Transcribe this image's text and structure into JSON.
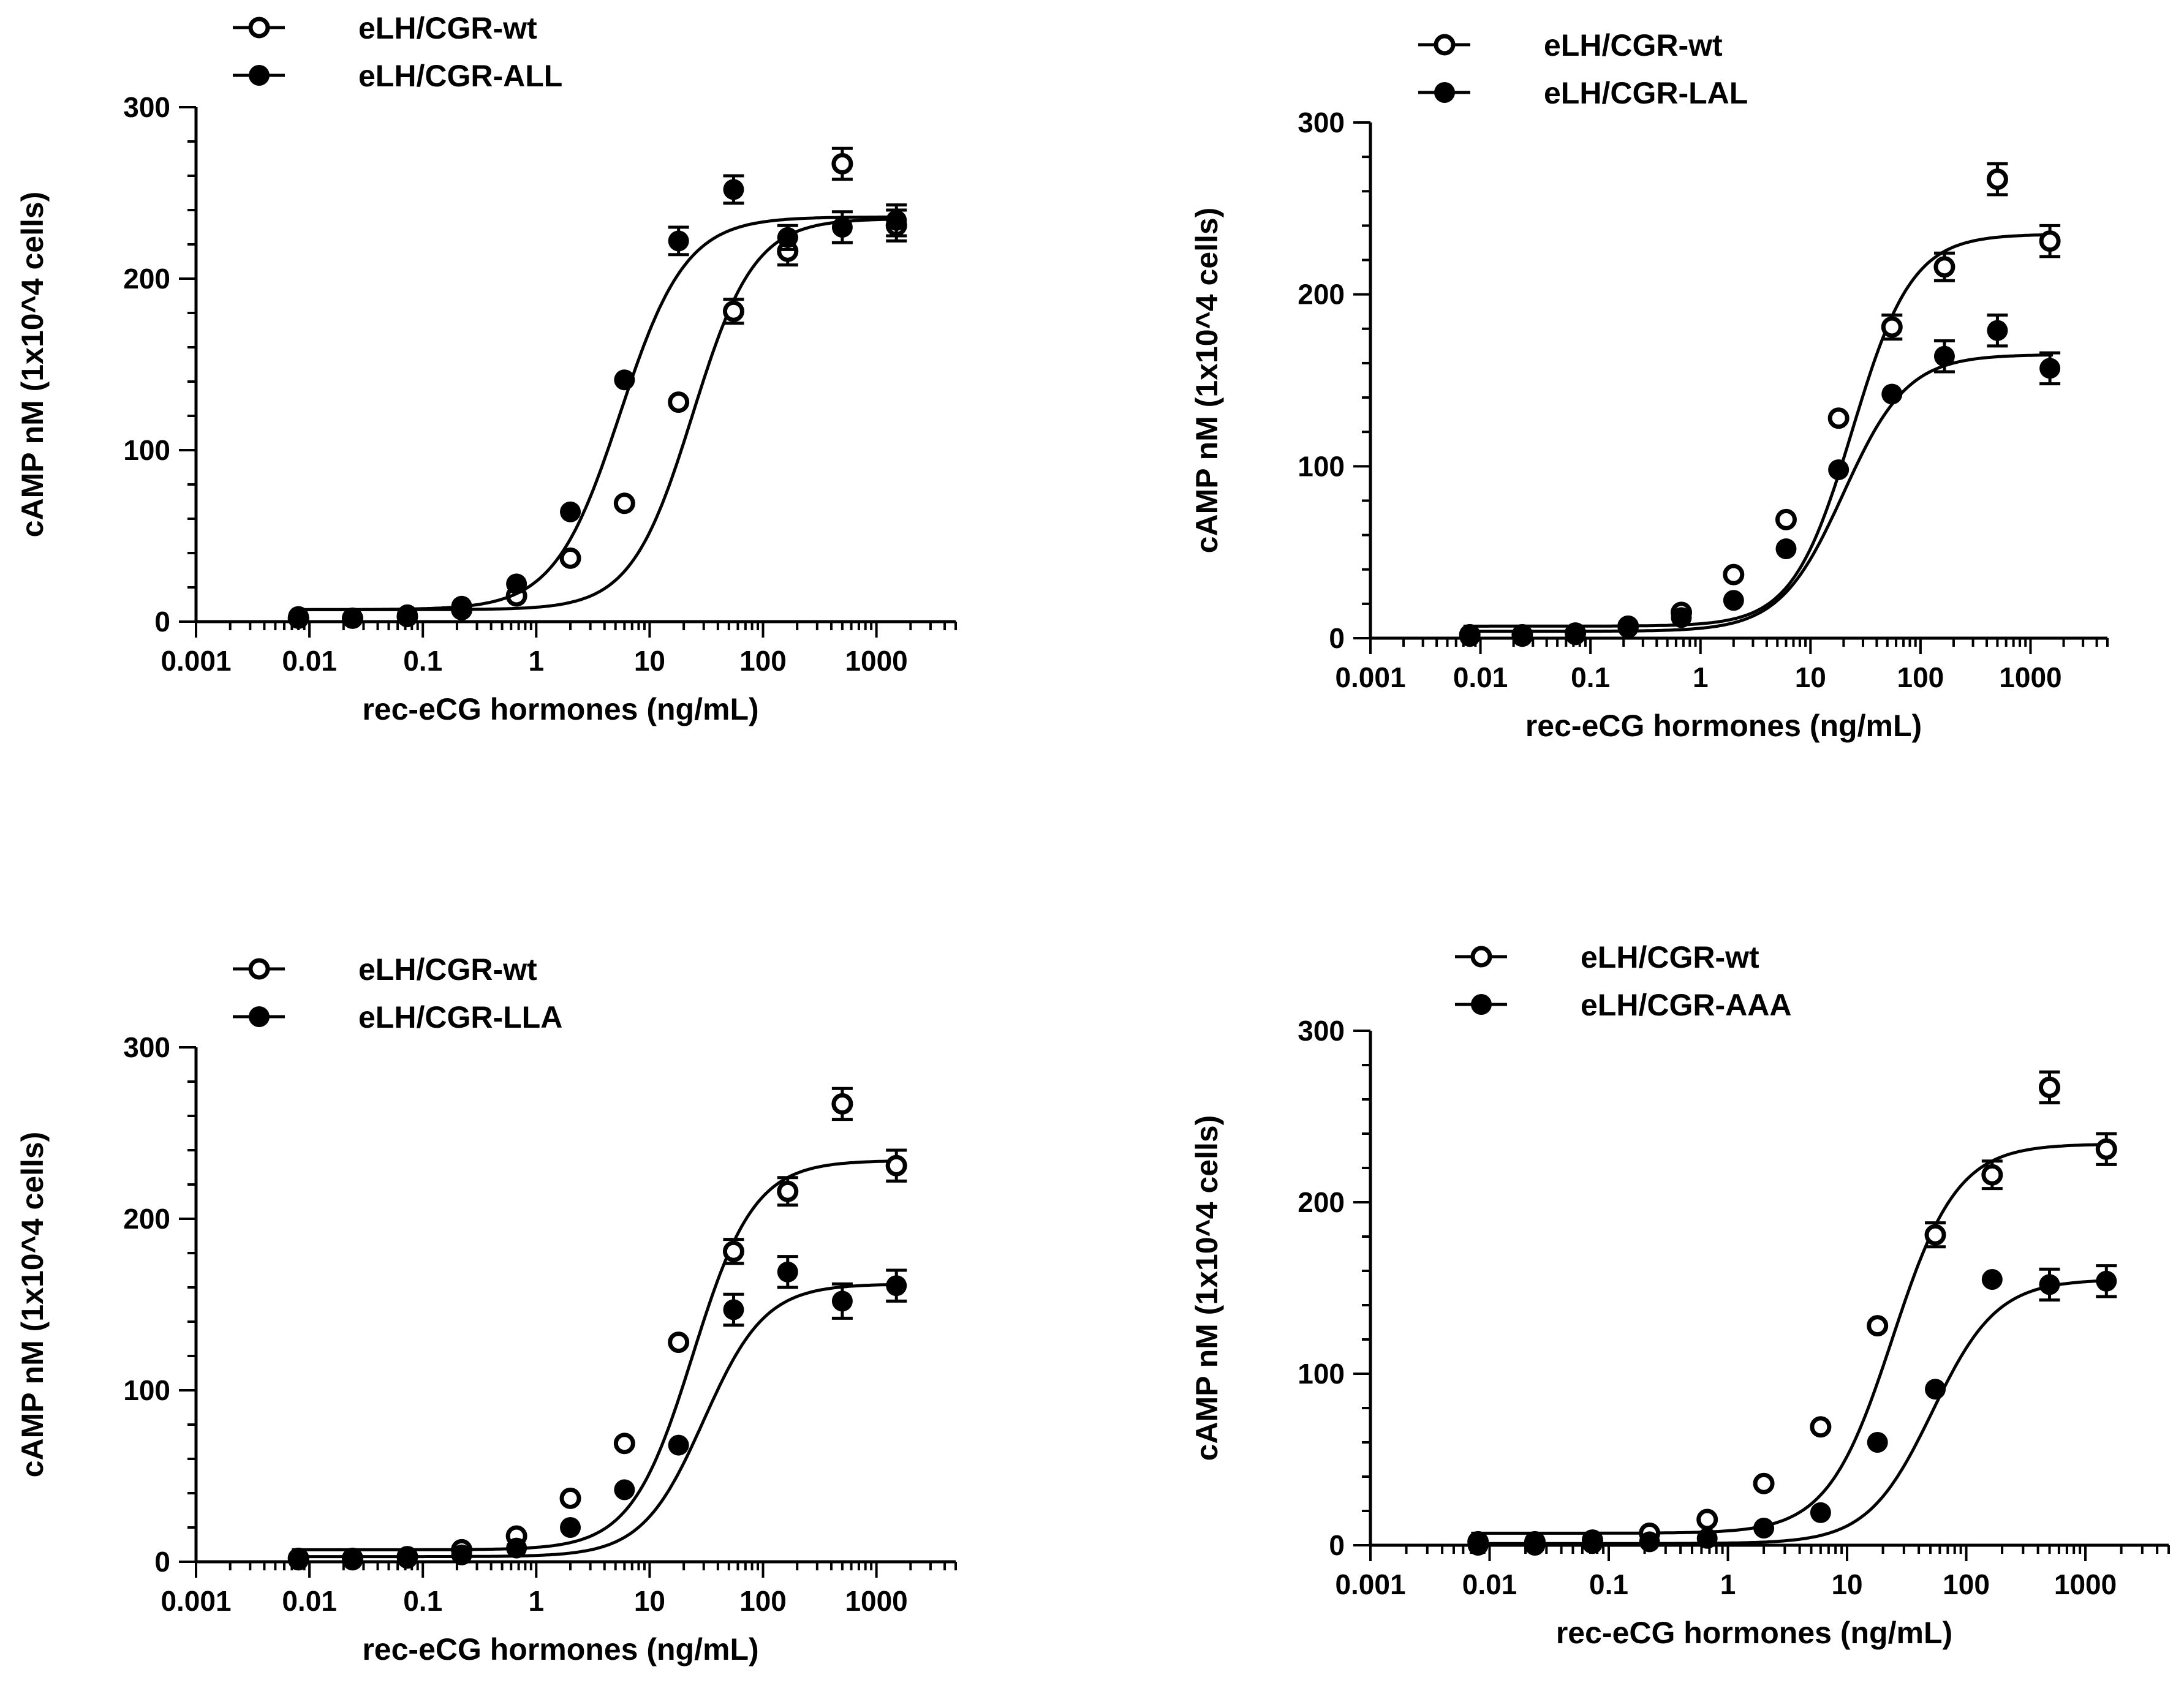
{
  "chart_data": [
    {
      "type": "scatter",
      "panel": "top-left",
      "xlabel": "rec-eCG hormones (ng/mL)",
      "ylabel": "cAMP nM (1x10^4 cells)",
      "xscale": "log",
      "xlim": [
        0.001,
        5000
      ],
      "ylim": [
        0,
        300
      ],
      "xticks": [
        "0.001",
        "0.01",
        "0.1",
        "1",
        "10",
        "100",
        "1000"
      ],
      "yticks": [
        "0",
        "100",
        "200",
        "300"
      ],
      "legend_position": "top-left",
      "series": [
        {
          "name": "eLH/CGR-wt",
          "marker": "open-circle",
          "x": [
            0.008,
            0.024,
            0.073,
            0.22,
            0.67,
            2,
            6,
            18,
            55,
            165,
            500,
            1500
          ],
          "y": [
            2,
            2,
            3,
            7,
            15,
            37,
            69,
            128,
            181,
            216,
            267,
            231
          ],
          "err": [
            0,
            0,
            0,
            0,
            0,
            0,
            0,
            0,
            7,
            8,
            9,
            9
          ],
          "fit": {
            "bottom": 7,
            "top": 235,
            "ec50": 24,
            "hill": 1.6
          }
        },
        {
          "name": "eLH/CGR-ALL",
          "marker": "filled-circle",
          "x": [
            0.008,
            0.024,
            0.073,
            0.22,
            0.67,
            2,
            6,
            18,
            55,
            165,
            500,
            1500
          ],
          "y": [
            3,
            2,
            4,
            9,
            22,
            64,
            141,
            222,
            252,
            224,
            230,
            234
          ],
          "err": [
            0,
            0,
            0,
            0,
            0,
            0,
            0,
            8,
            8,
            7,
            9,
            9
          ],
          "fit": {
            "bottom": 7,
            "top": 236,
            "ec50": 5.5,
            "hill": 1.5
          }
        }
      ]
    },
    {
      "type": "scatter",
      "panel": "top-right",
      "xlabel": "rec-eCG hormones (ng/mL)",
      "ylabel": "cAMP nM (1x10^4 cells)",
      "xscale": "log",
      "xlim": [
        0.001,
        5000
      ],
      "ylim": [
        0,
        300
      ],
      "xticks": [
        "0.001",
        "0.01",
        "0.1",
        "1",
        "10",
        "100",
        "1000"
      ],
      "yticks": [
        "0",
        "100",
        "200",
        "300"
      ],
      "legend_position": "top-center",
      "series": [
        {
          "name": "eLH/CGR-wt",
          "marker": "open-circle",
          "x": [
            0.008,
            0.024,
            0.073,
            0.22,
            0.67,
            2,
            6,
            18,
            55,
            165,
            500,
            1500
          ],
          "y": [
            2,
            2,
            3,
            7,
            15,
            37,
            69,
            128,
            181,
            216,
            267,
            231
          ],
          "err": [
            0,
            0,
            0,
            0,
            0,
            0,
            0,
            0,
            7,
            8,
            9,
            9
          ],
          "fit": {
            "bottom": 7,
            "top": 235,
            "ec50": 24,
            "hill": 1.6
          }
        },
        {
          "name": "eLH/CGR-LAL",
          "marker": "filled-circle",
          "x": [
            0.008,
            0.024,
            0.073,
            0.22,
            0.67,
            2,
            6,
            18,
            55,
            165,
            500,
            1500
          ],
          "y": [
            1,
            1,
            2,
            6,
            12,
            22,
            52,
            98,
            142,
            164,
            179,
            157
          ],
          "err": [
            0,
            0,
            0,
            0,
            0,
            0,
            0,
            0,
            0,
            9,
            9,
            9
          ],
          "fit": {
            "bottom": 4,
            "top": 165,
            "ec50": 20,
            "hill": 1.5
          }
        }
      ]
    },
    {
      "type": "scatter",
      "panel": "bottom-left",
      "xlabel": "rec-eCG hormones (ng/mL)",
      "ylabel": "cAMP nM (1x10^4 cells)",
      "xscale": "log",
      "xlim": [
        0.001,
        5000
      ],
      "ylim": [
        0,
        300
      ],
      "xticks": [
        "0.001",
        "0.01",
        "0.1",
        "1",
        "10",
        "100",
        "1000"
      ],
      "yticks": [
        "0",
        "100",
        "200",
        "300"
      ],
      "legend_position": "top-left",
      "series": [
        {
          "name": "eLH/CGR-wt",
          "marker": "open-circle",
          "x": [
            0.008,
            0.024,
            0.073,
            0.22,
            0.67,
            2,
            6,
            18,
            55,
            165,
            500,
            1500
          ],
          "y": [
            2,
            2,
            3,
            7,
            15,
            37,
            69,
            128,
            181,
            216,
            267,
            231
          ],
          "err": [
            0,
            0,
            0,
            0,
            0,
            0,
            0,
            0,
            7,
            8,
            9,
            9
          ],
          "fit": {
            "bottom": 7,
            "top": 234,
            "ec50": 24,
            "hill": 1.6
          }
        },
        {
          "name": "eLH/CGR-LLA",
          "marker": "filled-circle",
          "x": [
            0.008,
            0.024,
            0.073,
            0.22,
            0.67,
            2,
            6,
            18,
            55,
            165,
            500,
            1500
          ],
          "y": [
            1,
            1,
            2,
            4,
            8,
            20,
            42,
            68,
            147,
            169,
            152,
            161
          ],
          "err": [
            0,
            0,
            0,
            0,
            0,
            0,
            0,
            0,
            9,
            9,
            10,
            9
          ],
          "fit": {
            "bottom": 3,
            "top": 162,
            "ec50": 30,
            "hill": 1.6
          }
        }
      ]
    },
    {
      "type": "scatter",
      "panel": "bottom-right",
      "xlabel": "rec-eCG hormones (ng/mL)",
      "ylabel": "cAMP nM (1x10^4 cells)",
      "xscale": "log",
      "xlim": [
        0.001,
        5000
      ],
      "ylim": [
        0,
        300
      ],
      "xticks": [
        "0.001",
        "0.01",
        "0.1",
        "1",
        "10",
        "100",
        "1000"
      ],
      "yticks": [
        "0",
        "100",
        "200",
        "300"
      ],
      "legend_position": "top-center",
      "series": [
        {
          "name": "eLH/CGR-wt",
          "marker": "open-circle",
          "x": [
            0.008,
            0.024,
            0.073,
            0.22,
            0.67,
            2,
            6,
            18,
            55,
            165,
            500,
            1500
          ],
          "y": [
            2,
            2,
            3,
            7,
            15,
            36,
            69,
            128,
            181,
            216,
            267,
            231
          ],
          "err": [
            0,
            0,
            0,
            0,
            0,
            0,
            0,
            0,
            7,
            8,
            9,
            9
          ],
          "fit": {
            "bottom": 7,
            "top": 234,
            "ec50": 24,
            "hill": 1.6
          }
        },
        {
          "name": "eLH/CGR-AAA",
          "marker": "filled-circle",
          "x": [
            0.008,
            0.024,
            0.073,
            0.22,
            0.67,
            2,
            6,
            18,
            55,
            165,
            500,
            1500
          ],
          "y": [
            0,
            0,
            1,
            2,
            4,
            10,
            19,
            60,
            91,
            155,
            152,
            154
          ],
          "err": [
            0,
            0,
            0,
            0,
            0,
            0,
            0,
            0,
            0,
            0,
            9,
            9
          ],
          "fit": {
            "bottom": 1,
            "top": 155,
            "ec50": 52,
            "hill": 1.6
          }
        }
      ]
    }
  ]
}
